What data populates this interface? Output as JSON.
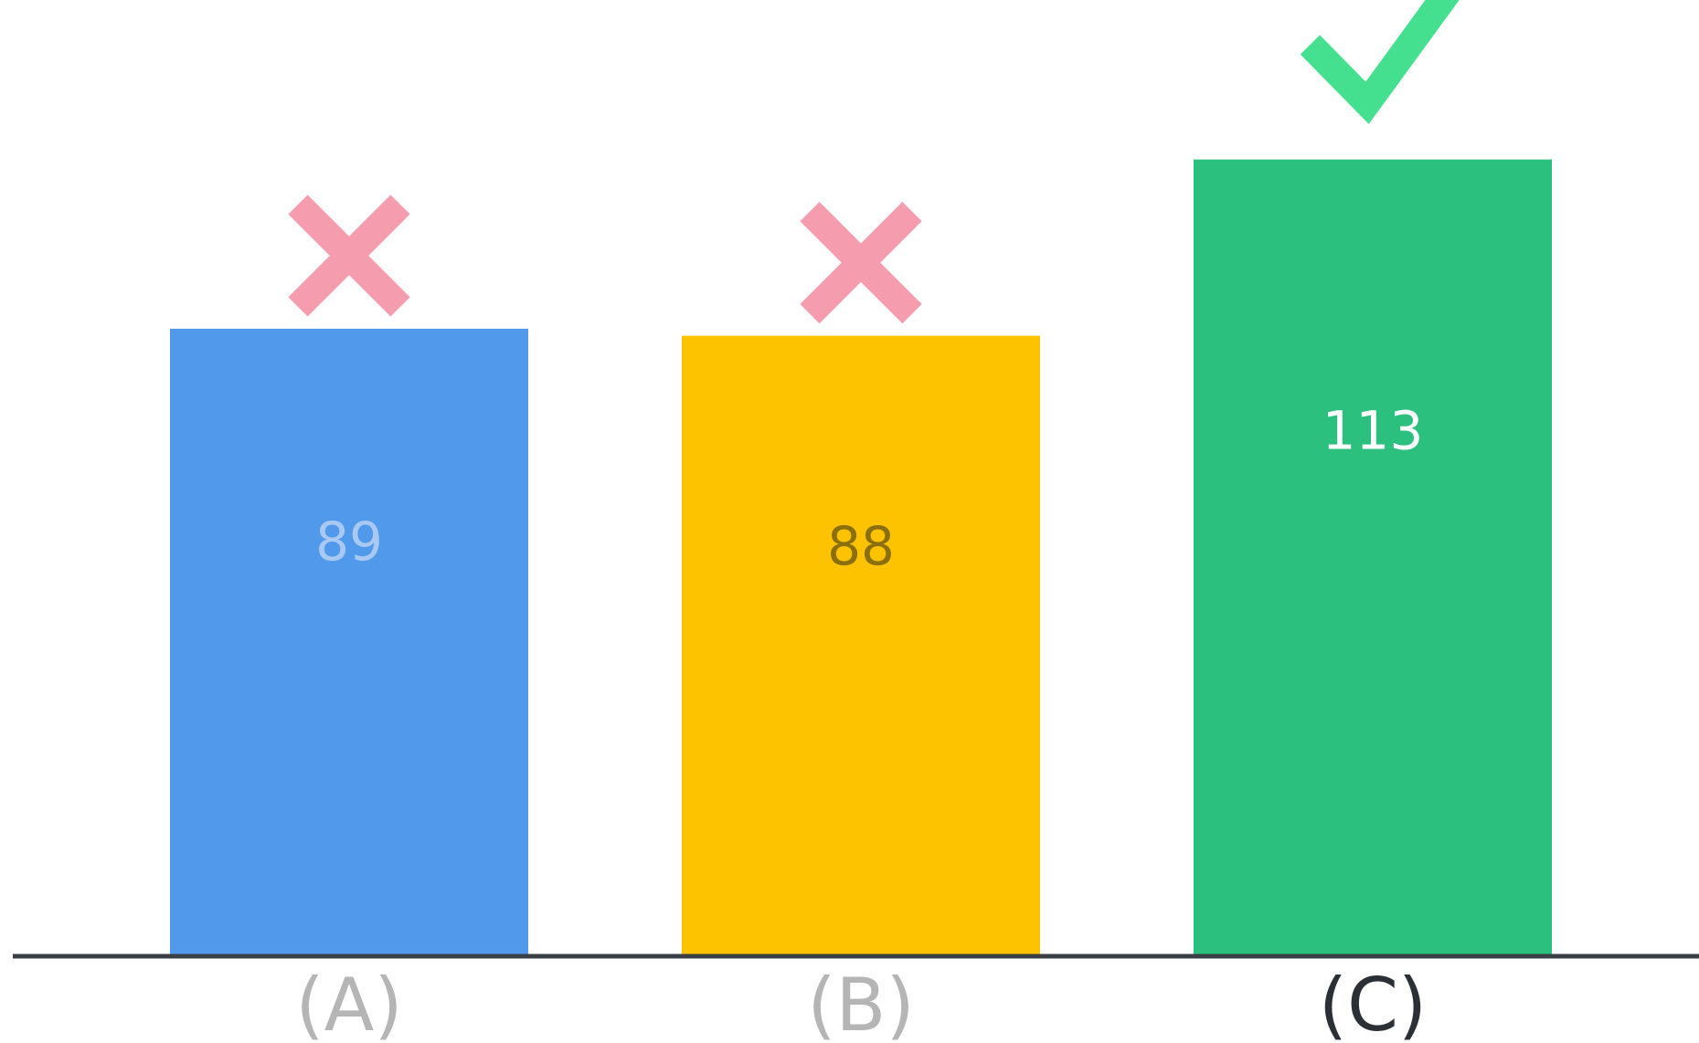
{
  "chart_data": {
    "type": "bar",
    "categories": [
      "(A)",
      "(B)",
      "(C)"
    ],
    "values": [
      89,
      88,
      113
    ],
    "ylim": [
      0,
      140
    ],
    "title": "",
    "xlabel": "",
    "ylabel": "",
    "grid": false,
    "bar_colors": [
      "#5199EB",
      "#FDC301",
      "#2BC07E"
    ],
    "value_label_colors": [
      "#A9C9F2",
      "#8A6F0B",
      "#FFFFFF"
    ],
    "category_label_colors": [
      "#B5B5B5",
      "#B5B5B5",
      "#2B2F36"
    ],
    "markers": [
      "cross-icon",
      "cross-icon",
      "check-icon"
    ],
    "marker_colors": [
      "#F59DAE",
      "#F59DAE",
      "#44E08F"
    ],
    "axis_color": "#3A3E45"
  }
}
